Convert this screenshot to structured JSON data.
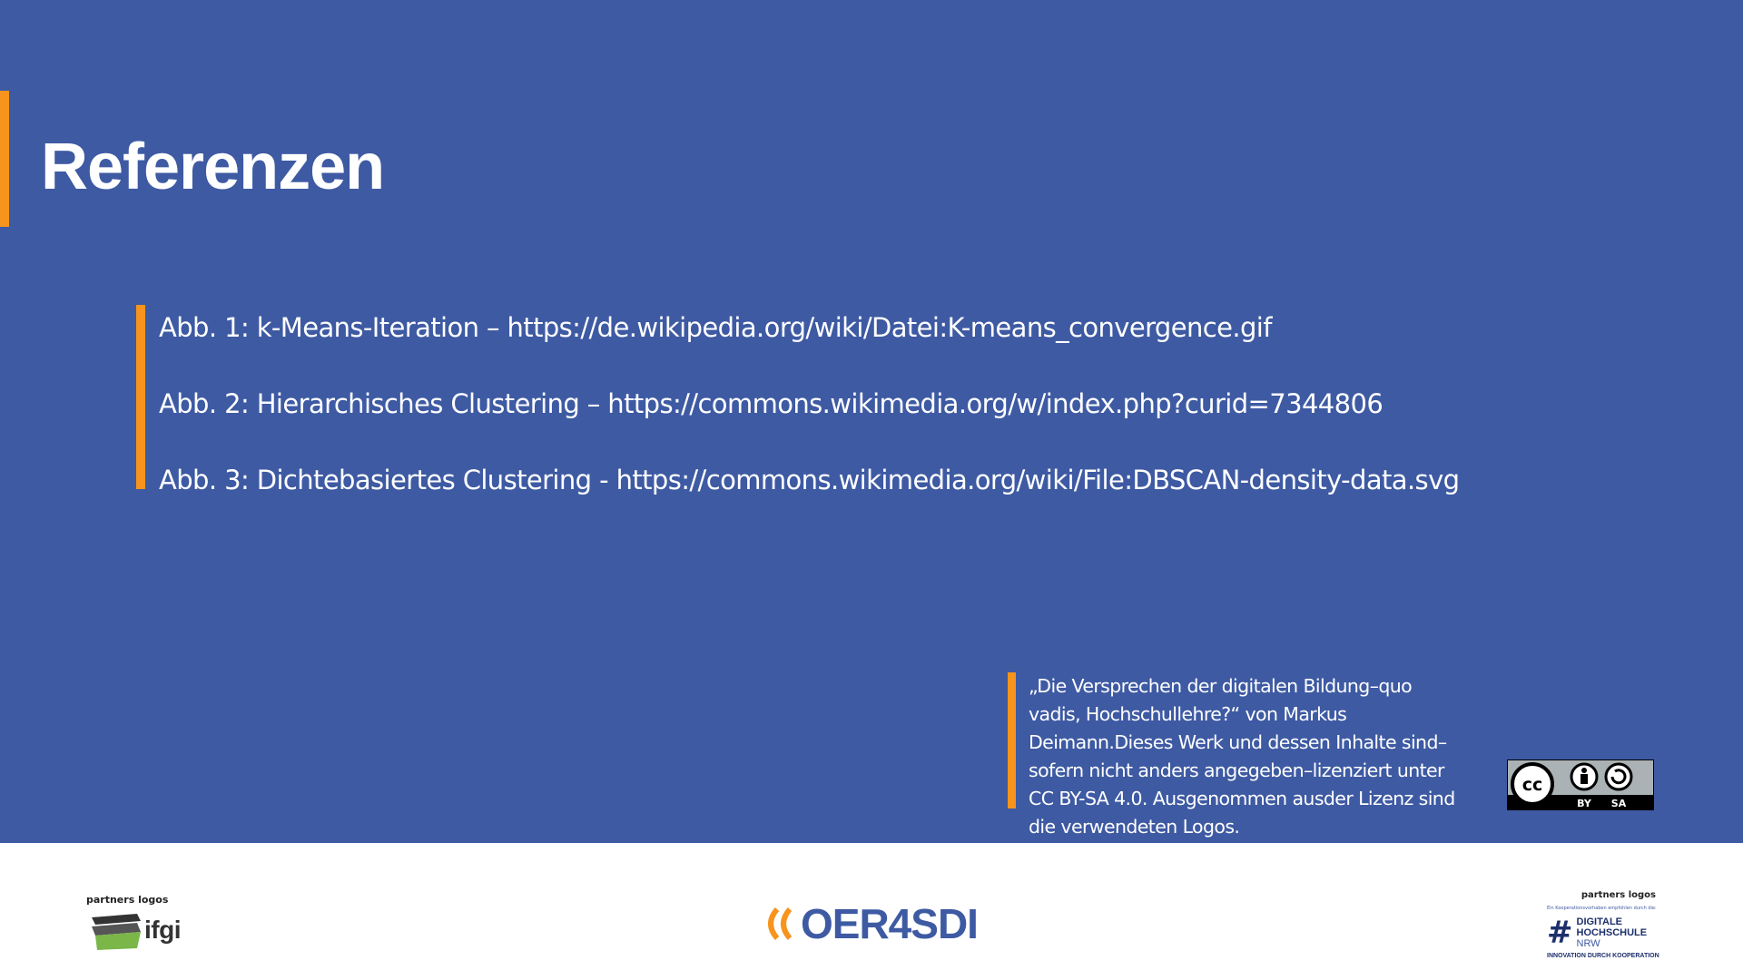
{
  "slide": {
    "title": "Referenzen",
    "references": [
      "Abb. 1: k-Means-Iteration – https://de.wikipedia.org/wiki/Datei:K-means_convergence.gif",
      "Abb. 2: Hierarchisches Clustering – https://commons.wikimedia.org/w/index.php?curid=7344806",
      "Abb. 3: Dichtebasiertes Clustering - https://commons.wikimedia.org/wiki/File:DBSCAN-density-data.svg"
    ],
    "license_text": "„Die Versprechen der digitalen Bildung–quo vadis, Hochschullehre?“ von Markus Deimann.Dieses Werk und dessen Inhalte sind–sofern nicht anders angegeben–lizenziert unter CC BY-SA 4.0. Ausgenommen ausder Lizenz sind die verwendeten Logos.",
    "cc_badge": {
      "by": "BY",
      "sa": "SA",
      "cc": "cc"
    }
  },
  "footer": {
    "left_label": "partners logos",
    "left_logo_text": "ifgi",
    "center_logo_text": "OER4SDI",
    "right_label": "partners logos",
    "right_small": "Ein Kooperationsvorhaben empfohlen durch die:",
    "right_logo_line1": "DIGITALE",
    "right_logo_line2": "HOCHSCHULE",
    "right_logo_line3": "NRW",
    "right_tagline": "INNOVATION DURCH KOOPERATION"
  },
  "colors": {
    "background": "#3e5aa3",
    "accent": "#f7941d",
    "footer_bg": "#ffffff"
  }
}
